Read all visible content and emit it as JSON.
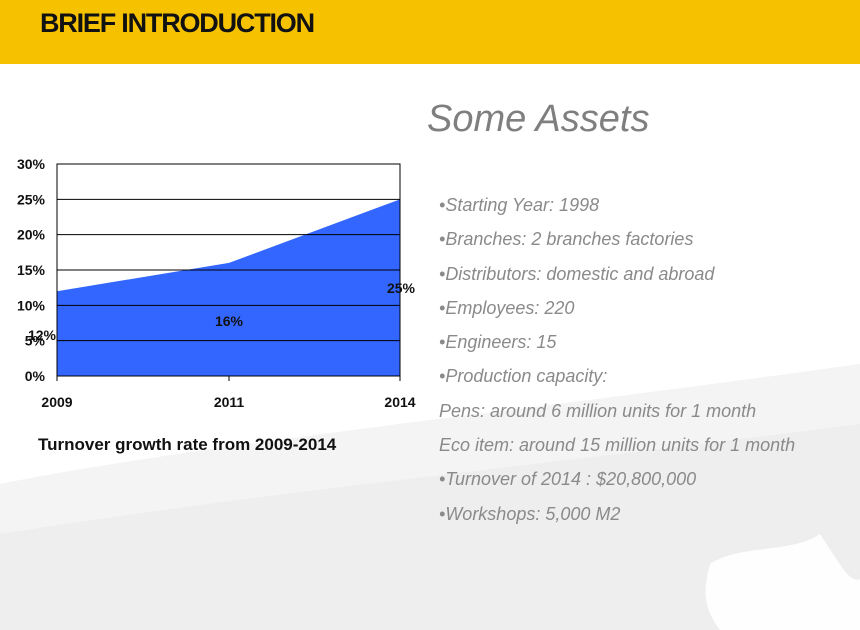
{
  "header": {
    "title": "BRIEF INTRODUCTION"
  },
  "colors": {
    "header_bar": "#f6c200",
    "area_fill": "#3366ff",
    "muted_text": "#8a8a8a"
  },
  "assets": {
    "title": "Some Assets",
    "items": [
      {
        "text": "Starting Year: 1998",
        "bullet": true
      },
      {
        "text": "Branches: 2 branches factories",
        "bullet": true
      },
      {
        "text": "Distributors: domestic and abroad",
        "bullet": true
      },
      {
        "text": "Employees: 220",
        "bullet": true
      },
      {
        "text": "Engineers: 15",
        "bullet": true
      },
      {
        "text": "Production capacity:",
        "bullet": true
      },
      {
        "text": "Pens:  around 6 million units for 1 month",
        "bullet": false
      },
      {
        "text": "Eco item:  around  15 million units for 1 month",
        "bullet": false
      },
      {
        "text": "Turnover of 2014 :   $20,800,000",
        "bullet": true
      },
      {
        "text": "Workshops: 5,000 M2",
        "bullet": true
      }
    ]
  },
  "chart_data": {
    "type": "area",
    "title": "Turnover growth rate from 2009-2014",
    "x": [
      "2009",
      "2011",
      "2014"
    ],
    "values": [
      12,
      16,
      25
    ],
    "data_labels": [
      "12%",
      "16%",
      "25%"
    ],
    "y_ticks": [
      "0%",
      "5%",
      "10%",
      "15%",
      "20%",
      "25%",
      "30%"
    ],
    "ylim": [
      0,
      30
    ],
    "grid": true
  }
}
